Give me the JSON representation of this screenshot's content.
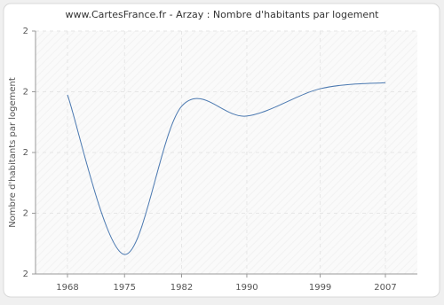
{
  "chart_data": {
    "type": "line",
    "title": "www.CartesFrance.fr - Arzay : Nombre d'habitants par logement",
    "y_label": "Nombre d'habitants par logement",
    "x": [
      1968,
      1975,
      1982,
      1990,
      1999,
      2007
    ],
    "series": [
      {
        "name": "Arzay",
        "color": "#4a78b0",
        "values": [
          2.095,
          1.832,
          2.076,
          2.06,
          2.105,
          2.115
        ]
      }
    ],
    "xlim": [
      1964.08,
      2010.92
    ],
    "xticks": [
      1968,
      1975,
      1982,
      1990,
      1999,
      2007
    ],
    "ylim": [
      1.8,
      2.2
    ],
    "yticks": [
      {
        "value": 1.8,
        "label": "2"
      },
      {
        "value": 1.9,
        "label": "2"
      },
      {
        "value": 2.0,
        "label": "2"
      },
      {
        "value": 2.1,
        "label": "2"
      },
      {
        "value": 2.2,
        "label": "2"
      }
    ],
    "grid": true
  }
}
